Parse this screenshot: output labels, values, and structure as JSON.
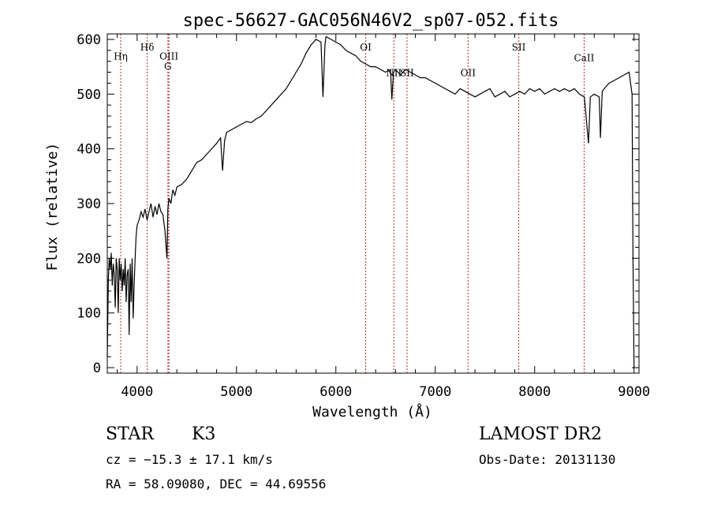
{
  "chart_data": {
    "type": "line",
    "title": "spec-56627-GAC056N46V2_sp07-052.fits",
    "xlabel": "Wavelength (Å)",
    "ylabel": "Flux (relative)",
    "xlim": [
      3700,
      9050
    ],
    "ylim": [
      -10,
      610
    ],
    "x_ticks": [
      4000,
      5000,
      6000,
      7000,
      8000,
      9000
    ],
    "y_ticks": [
      0,
      100,
      200,
      300,
      400,
      500,
      600
    ],
    "grid": false,
    "spectrum_color": "#000000",
    "line_marker_color": "#b03030",
    "spectrum": [
      [
        3700,
        20
      ],
      [
        3710,
        160
      ],
      [
        3720,
        200
      ],
      [
        3730,
        180
      ],
      [
        3740,
        210
      ],
      [
        3750,
        150
      ],
      [
        3760,
        190
      ],
      [
        3770,
        170
      ],
      [
        3780,
        110
      ],
      [
        3790,
        200
      ],
      [
        3800,
        180
      ],
      [
        3810,
        100
      ],
      [
        3820,
        200
      ],
      [
        3830,
        160
      ],
      [
        3840,
        190
      ],
      [
        3850,
        140
      ],
      [
        3860,
        180
      ],
      [
        3870,
        150
      ],
      [
        3880,
        200
      ],
      [
        3890,
        120
      ],
      [
        3900,
        170
      ],
      [
        3910,
        180
      ],
      [
        3920,
        60
      ],
      [
        3930,
        190
      ],
      [
        3940,
        120
      ],
      [
        3950,
        200
      ],
      [
        3960,
        90
      ],
      [
        3970,
        150
      ],
      [
        3980,
        200
      ],
      [
        3990,
        240
      ],
      [
        4000,
        260
      ],
      [
        4020,
        270
      ],
      [
        4040,
        285
      ],
      [
        4060,
        275
      ],
      [
        4080,
        290
      ],
      [
        4100,
        270
      ],
      [
        4120,
        285
      ],
      [
        4140,
        300
      ],
      [
        4160,
        275
      ],
      [
        4180,
        295
      ],
      [
        4200,
        280
      ],
      [
        4220,
        300
      ],
      [
        4240,
        285
      ],
      [
        4260,
        280
      ],
      [
        4280,
        250
      ],
      [
        4300,
        200
      ],
      [
        4310,
        290
      ],
      [
        4320,
        310
      ],
      [
        4340,
        300
      ],
      [
        4360,
        325
      ],
      [
        4380,
        315
      ],
      [
        4400,
        330
      ],
      [
        4450,
        335
      ],
      [
        4500,
        345
      ],
      [
        4550,
        360
      ],
      [
        4600,
        375
      ],
      [
        4650,
        380
      ],
      [
        4700,
        390
      ],
      [
        4750,
        400
      ],
      [
        4800,
        410
      ],
      [
        4840,
        420
      ],
      [
        4860,
        360
      ],
      [
        4880,
        415
      ],
      [
        4900,
        430
      ],
      [
        4950,
        435
      ],
      [
        5000,
        440
      ],
      [
        5050,
        445
      ],
      [
        5100,
        450
      ],
      [
        5150,
        448
      ],
      [
        5200,
        455
      ],
      [
        5250,
        460
      ],
      [
        5300,
        470
      ],
      [
        5350,
        480
      ],
      [
        5400,
        490
      ],
      [
        5450,
        500
      ],
      [
        5500,
        510
      ],
      [
        5550,
        525
      ],
      [
        5600,
        540
      ],
      [
        5650,
        555
      ],
      [
        5700,
        575
      ],
      [
        5750,
        590
      ],
      [
        5800,
        600
      ],
      [
        5850,
        595
      ],
      [
        5870,
        495
      ],
      [
        5890,
        590
      ],
      [
        5900,
        605
      ],
      [
        5950,
        600
      ],
      [
        6000,
        595
      ],
      [
        6050,
        590
      ],
      [
        6100,
        580
      ],
      [
        6150,
        575
      ],
      [
        6200,
        570
      ],
      [
        6250,
        560
      ],
      [
        6300,
        555
      ],
      [
        6350,
        550
      ],
      [
        6400,
        550
      ],
      [
        6450,
        545
      ],
      [
        6500,
        540
      ],
      [
        6550,
        545
      ],
      [
        6563,
        490
      ],
      [
        6580,
        540
      ],
      [
        6600,
        545
      ],
      [
        6650,
        535
      ],
      [
        6700,
        545
      ],
      [
        6750,
        540
      ],
      [
        6800,
        535
      ],
      [
        6850,
        530
      ],
      [
        6900,
        530
      ],
      [
        6950,
        525
      ],
      [
        7000,
        520
      ],
      [
        7050,
        515
      ],
      [
        7100,
        510
      ],
      [
        7150,
        505
      ],
      [
        7200,
        500
      ],
      [
        7250,
        510
      ],
      [
        7300,
        505
      ],
      [
        7350,
        500
      ],
      [
        7400,
        495
      ],
      [
        7450,
        500
      ],
      [
        7500,
        505
      ],
      [
        7550,
        510
      ],
      [
        7600,
        495
      ],
      [
        7650,
        500
      ],
      [
        7700,
        505
      ],
      [
        7750,
        495
      ],
      [
        7800,
        500
      ],
      [
        7850,
        505
      ],
      [
        7900,
        500
      ],
      [
        7950,
        510
      ],
      [
        8000,
        505
      ],
      [
        8050,
        510
      ],
      [
        8100,
        500
      ],
      [
        8150,
        505
      ],
      [
        8200,
        510
      ],
      [
        8250,
        505
      ],
      [
        8300,
        510
      ],
      [
        8350,
        505
      ],
      [
        8400,
        510
      ],
      [
        8450,
        500
      ],
      [
        8500,
        495
      ],
      [
        8542,
        410
      ],
      [
        8560,
        495
      ],
      [
        8600,
        500
      ],
      [
        8650,
        495
      ],
      [
        8662,
        420
      ],
      [
        8680,
        505
      ],
      [
        8700,
        510
      ],
      [
        8750,
        520
      ],
      [
        8800,
        525
      ],
      [
        8850,
        530
      ],
      [
        8900,
        535
      ],
      [
        8950,
        540
      ],
      [
        8980,
        500
      ],
      [
        8990,
        200
      ],
      [
        9000,
        0
      ]
    ],
    "lines": [
      {
        "name": "Hη",
        "x": 3835,
        "label_y": 563
      },
      {
        "name": "Hδ",
        "x": 4102,
        "label_y": 580
      },
      {
        "name": "OIII",
        "x": 4320,
        "label_y": 563
      },
      {
        "name": "G",
        "x": 4310,
        "label_y": 545
      },
      {
        "name": "OI",
        "x": 6300,
        "label_y": 580
      },
      {
        "name": "NII",
        "x": 6583,
        "label_y": 533
      },
      {
        "name": "SII",
        "x": 6716,
        "label_y": 533
      },
      {
        "name": "OII",
        "x": 7330,
        "label_y": 533
      },
      {
        "name": "SII",
        "x": 7840,
        "label_y": 580
      },
      {
        "name": "CaII",
        "x": 8498,
        "label_y": 560
      }
    ]
  },
  "info": {
    "object_class": "STAR",
    "subclass": "K3",
    "survey": "LAMOST DR2",
    "redshift_text": "cz = −15.3 ± 17.1 km/s",
    "obs_date_text": "Obs-Date: 20131130",
    "coords_text": "RA =  58.09080, DEC =  44.69556"
  }
}
